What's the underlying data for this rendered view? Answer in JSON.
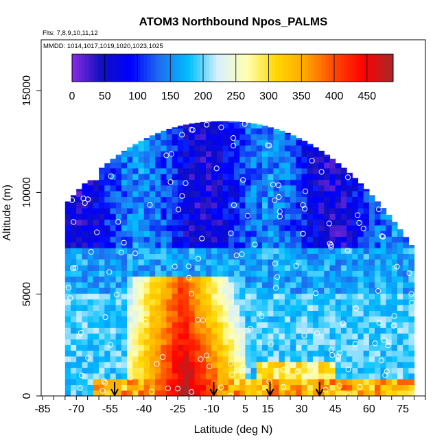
{
  "chart_data": {
    "type": "heatmap",
    "title": "ATOM3 Northbound Npos_PALMS",
    "flights_note": "Flts: 7,8,9,10,11,12",
    "dates_note": "MMDD: 1014,1017,1019,1020,1023,1025",
    "xlabel": "Latitude (deg N)",
    "ylabel": "Altitude (m)",
    "xlim": [
      -85,
      85
    ],
    "ylim": [
      0,
      17500
    ],
    "x_ticks": [
      -85,
      -70,
      -55,
      -40,
      -25,
      -10,
      5,
      15,
      30,
      45,
      60,
      75
    ],
    "y_ticks": [
      0,
      5000,
      10000,
      15000
    ],
    "colorbar": {
      "ticks": [
        0,
        50,
        100,
        150,
        200,
        250,
        300,
        350,
        400,
        450
      ],
      "range": [
        0,
        490
      ],
      "colors": [
        "#8a2be2",
        "#1010c0",
        "#0000ff",
        "#1e6ff0",
        "#00bfff",
        "#d8f0ff",
        "#ffffb0",
        "#ffd700",
        "#ffa500",
        "#ff4500",
        "#ff0000",
        "#a52a2a"
      ]
    },
    "arrows_lat": [
      -53,
      -9,
      16,
      38
    ],
    "colors": {
      "low": "#1010c0",
      "high": "#c00000"
    }
  }
}
